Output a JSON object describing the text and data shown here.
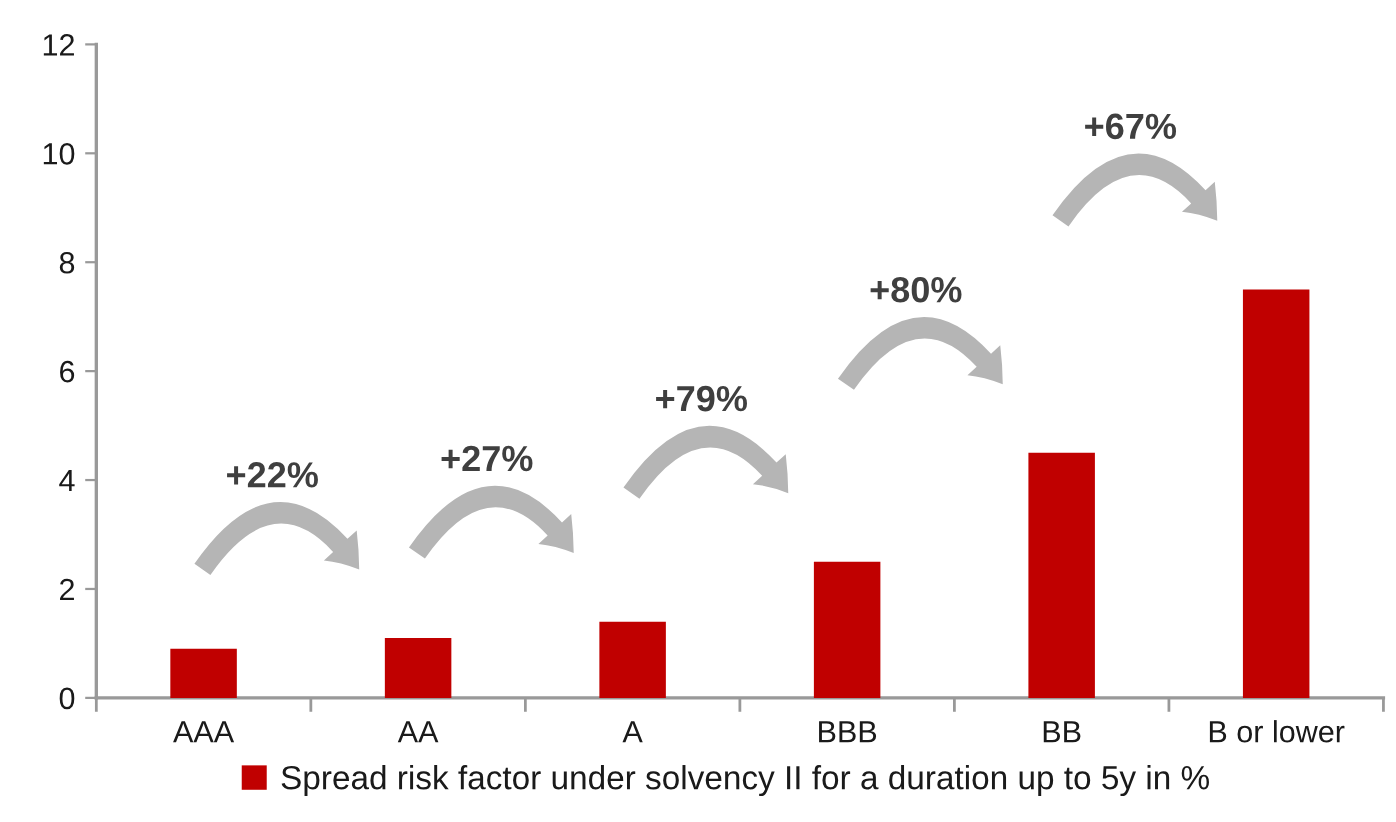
{
  "chart_data": {
    "type": "bar",
    "categories": [
      "AAA",
      "AA",
      "A",
      "BBB",
      "BB",
      "B or lower"
    ],
    "series": [
      {
        "name": "Spread risk factor under solvency II for a duration up to 5y in %",
        "color": "#c00000",
        "values": [
          0.9,
          1.1,
          1.4,
          2.5,
          4.5,
          7.5
        ]
      }
    ],
    "ylim": [
      0,
      12
    ],
    "yticks": [
      0,
      2,
      4,
      6,
      8,
      10,
      12
    ],
    "annotations": [
      "+22%",
      "+27%",
      "+79%",
      "+80%",
      "+67%"
    ],
    "legend": "bottom"
  }
}
